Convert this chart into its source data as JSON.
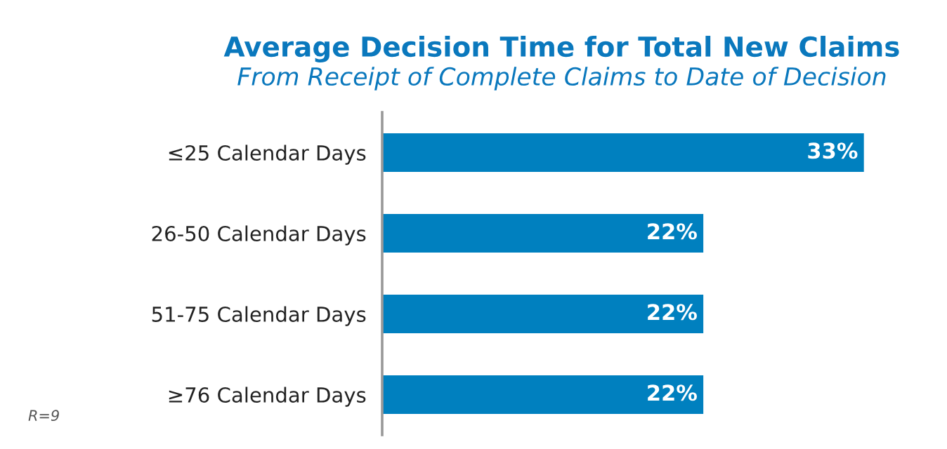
{
  "chart_data": {
    "type": "bar",
    "orientation": "horizontal",
    "title": "Average Decision Time for Total New Claims",
    "subtitle": "From Receipt of Complete Claims to Date of Decision",
    "categories": [
      "≤25 Calendar Days",
      "26-50 Calendar Days",
      "51-75 Calendar Days",
      "≥76 Calendar Days"
    ],
    "values": [
      33,
      22,
      22,
      22
    ],
    "color": "#0080bf",
    "value_labels": [
      "33%",
      "22%",
      "22%",
      "22%"
    ],
    "annotations": [
      "R=9"
    ]
  }
}
